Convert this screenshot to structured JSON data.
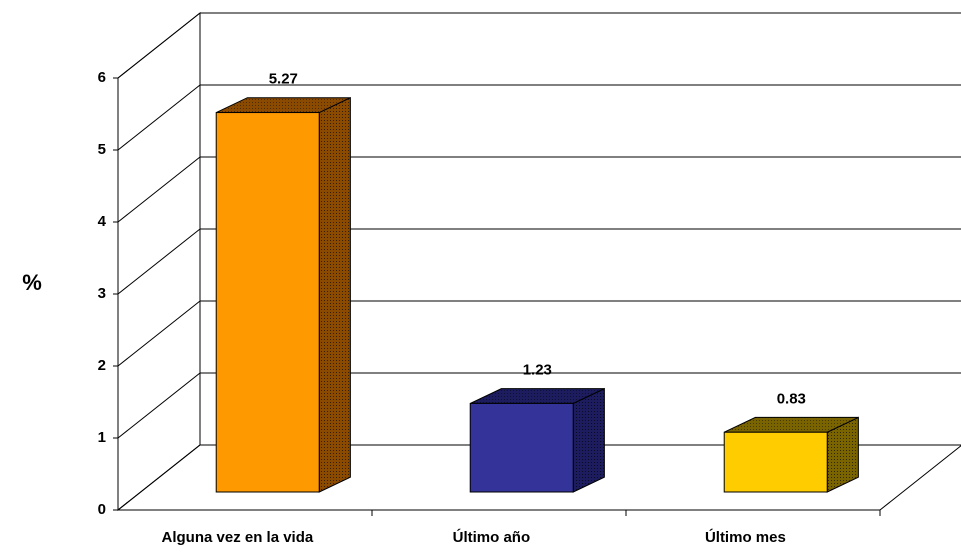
{
  "chart_data": {
    "type": "bar",
    "ylabel": "%",
    "categories": [
      "Alguna vez en la vida",
      "Último año",
      "Último mes"
    ],
    "values": [
      5.27,
      1.23,
      0.83
    ],
    "colors": [
      "#ff9900",
      "#333399",
      "#ffcc00"
    ],
    "side_colors": [
      "#8a4a00",
      "#1c1c5e",
      "#7a6400"
    ],
    "ylim": [
      0,
      6
    ],
    "yticks": [
      0,
      1,
      2,
      3,
      4,
      5,
      6
    ],
    "grid": true
  }
}
